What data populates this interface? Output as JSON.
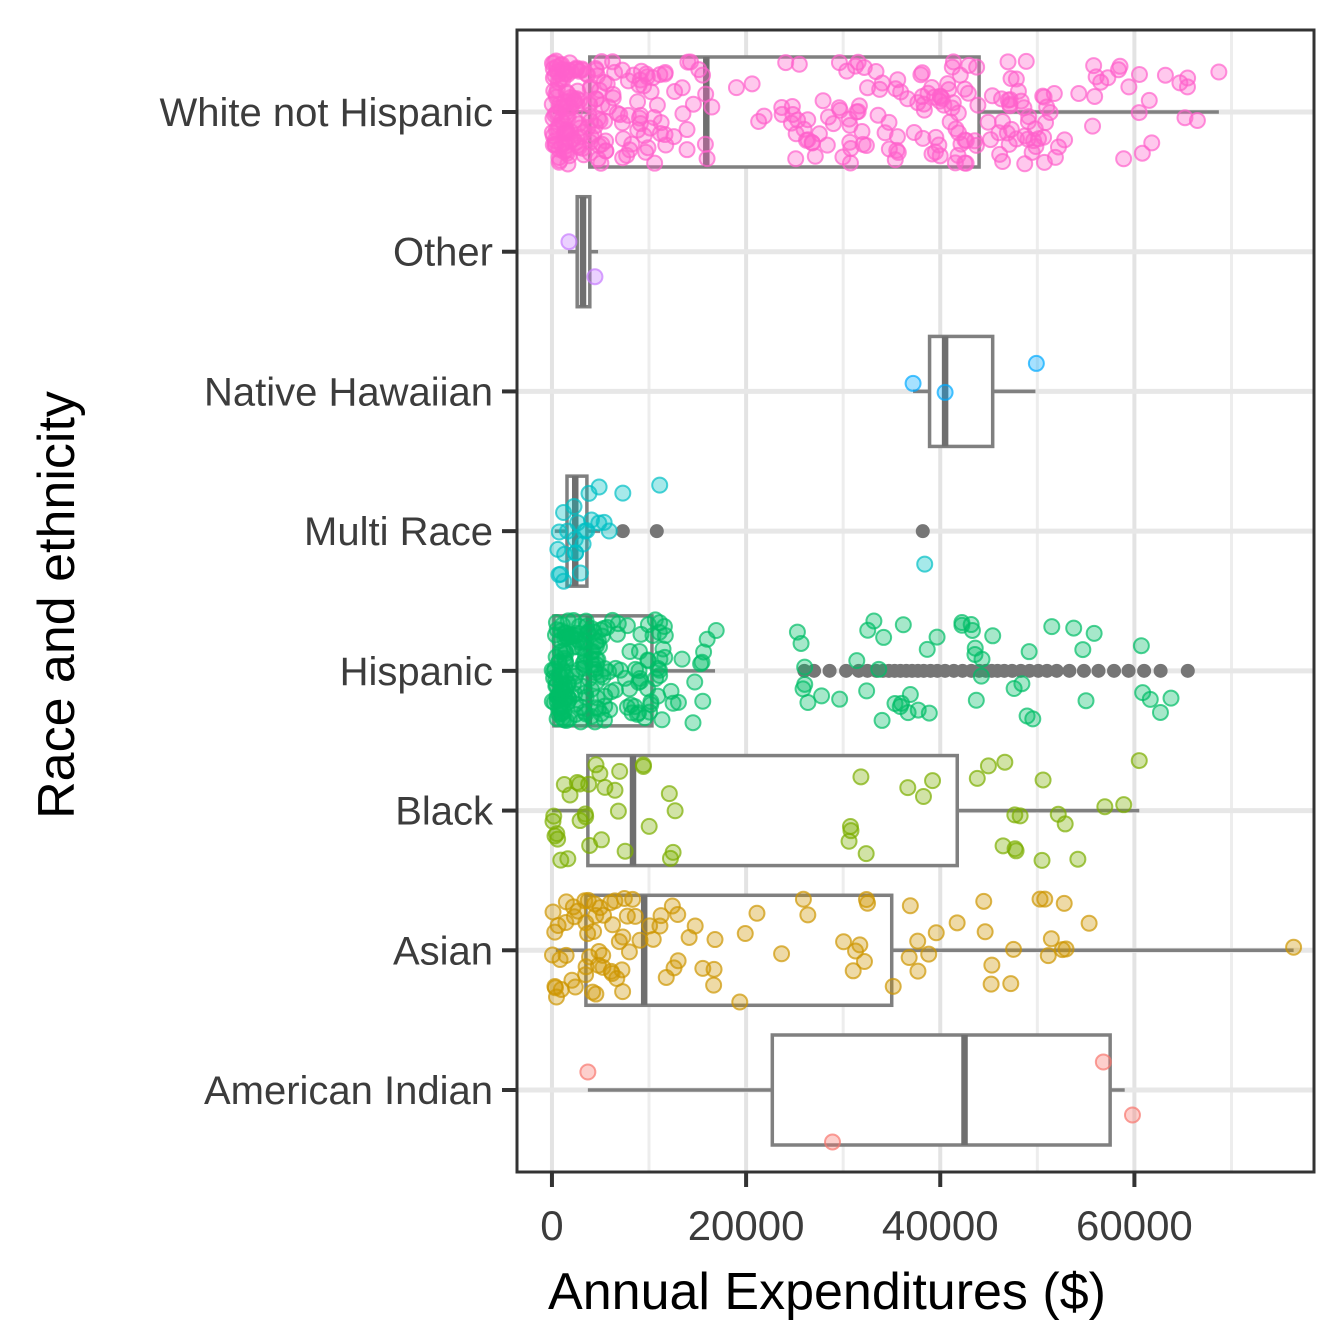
{
  "chart_data": {
    "type": "boxplot-jitter",
    "orientation": "horizontal",
    "title": "",
    "xlabel": "Annual Expenditures ($)",
    "ylabel": "Race and ethnicity",
    "x_ticks": [
      0,
      20000,
      40000,
      60000
    ],
    "x_minor_ticks": [
      10000,
      30000,
      50000,
      70000
    ],
    "xlim": [
      -3600,
      78500
    ],
    "grid": "major+minor",
    "legend": "none",
    "categories_top_to_bottom": [
      "White not Hispanic",
      "Other",
      "Native Hawaiian",
      "Multi Race",
      "Hispanic",
      "Black",
      "Asian",
      "American Indian"
    ],
    "series": [
      {
        "label": "White not Hispanic",
        "color": "#FF61CC",
        "n_points_approx": 375,
        "box": {
          "whisker_low": 100,
          "q1": 3900,
          "median": 15900,
          "q3": 44000,
          "whisker_high": 68700
        },
        "outliers_gray": [],
        "points_explicit": [
          {
            "v": 68700,
            "dy": -40
          }
        ],
        "point_clusters": [
          {
            "from": 0,
            "to": 1800,
            "n": 70
          },
          {
            "from": 1800,
            "to": 5500,
            "n": 60
          },
          {
            "from": 5500,
            "to": 12000,
            "n": 48
          },
          {
            "from": 12000,
            "to": 16000,
            "n": 14
          },
          {
            "from": 16000,
            "to": 24500,
            "n": 8
          },
          {
            "from": 24500,
            "to": 34000,
            "n": 42
          },
          {
            "from": 34000,
            "to": 44000,
            "n": 58
          },
          {
            "from": 44000,
            "to": 52000,
            "n": 42
          },
          {
            "from": 52000,
            "to": 62000,
            "n": 18
          },
          {
            "from": 62000,
            "to": 67500,
            "n": 6
          }
        ]
      },
      {
        "label": "Other",
        "color": "#C77CFF",
        "n_points_approx": 2,
        "box": {
          "whisker_low": 1650,
          "q1": 2600,
          "median": 3200,
          "q3": 3900,
          "whisker_high": 4750
        },
        "outliers_gray": [],
        "points_explicit": [
          {
            "v": 1750,
            "dy": -10
          },
          {
            "v": 4430,
            "dy": 25
          }
        ],
        "point_clusters": []
      },
      {
        "label": "Native Hawaiian",
        "color": "#00A9FF",
        "n_points_approx": 3,
        "box": {
          "whisker_low": 37200,
          "q1": 38900,
          "median": 40500,
          "q3": 45400,
          "whisker_high": 49800
        },
        "outliers_gray": [],
        "points_explicit": [
          {
            "v": 37200,
            "dy": -8
          },
          {
            "v": 40500,
            "dy": 1
          },
          {
            "v": 49900,
            "dy": -28
          }
        ],
        "point_clusters": []
      },
      {
        "label": "Multi Race",
        "color": "#00BFC4",
        "n_points_approx": 26,
        "box": {
          "whisker_low": 300,
          "q1": 1550,
          "median": 2400,
          "q3": 3600,
          "whisker_high": 4950
        },
        "outliers_gray": [
          7300,
          10800,
          38200
        ],
        "points_explicit": [
          {
            "v": 7300,
            "dy": -38
          },
          {
            "v": 11100,
            "dy": -46
          },
          {
            "v": 38400,
            "dy": 33
          }
        ],
        "point_clusters": [
          {
            "from": 0,
            "to": 1500,
            "n": 7
          },
          {
            "from": 1500,
            "to": 4000,
            "n": 11
          },
          {
            "from": 4000,
            "to": 6200,
            "n": 5
          }
        ]
      },
      {
        "label": "Hispanic",
        "color": "#00BE67",
        "n_points_approx": 245,
        "box": {
          "whisker_low": 0,
          "q1": 200,
          "median": 3800,
          "q3": 10300,
          "whisker_high": 16800
        },
        "outliers_gray": [
          26000,
          27000,
          28600,
          30300,
          31600,
          32500,
          33400,
          34100,
          34700,
          35300,
          35900,
          36500,
          37100,
          37700,
          38300,
          39000,
          39700,
          40500,
          41400,
          42300,
          43200,
          44000,
          44700,
          45300,
          45900,
          46600,
          47400,
          48300,
          49200,
          50100,
          51000,
          52000,
          53300,
          54800,
          56300,
          57900,
          59400,
          61000,
          62700,
          65500
        ],
        "points_explicit": [],
        "point_clusters": [
          {
            "from": 0,
            "to": 1800,
            "n": 70
          },
          {
            "from": 1800,
            "to": 5500,
            "n": 70
          },
          {
            "from": 5500,
            "to": 12000,
            "n": 50
          },
          {
            "from": 12000,
            "to": 17000,
            "n": 12
          },
          {
            "from": 25000,
            "to": 32000,
            "n": 9
          },
          {
            "from": 32000,
            "to": 42000,
            "n": 16
          },
          {
            "from": 42000,
            "to": 52000,
            "n": 16
          },
          {
            "from": 52000,
            "to": 62000,
            "n": 7
          },
          {
            "from": 62000,
            "to": 64000,
            "n": 2
          }
        ]
      },
      {
        "label": "Black",
        "color": "#7CAE00",
        "n_points_approx": 55,
        "box": {
          "whisker_low": 0,
          "q1": 3700,
          "median": 8350,
          "q3": 41750,
          "whisker_high": 60500
        },
        "outliers_gray": [],
        "points_explicit": [
          {
            "v": 60500,
            "dy": -50
          }
        ],
        "point_clusters": [
          {
            "from": 0,
            "to": 2500,
            "n": 9
          },
          {
            "from": 2500,
            "to": 7000,
            "n": 14
          },
          {
            "from": 7000,
            "to": 15000,
            "n": 8
          },
          {
            "from": 27000,
            "to": 36000,
            "n": 5
          },
          {
            "from": 36000,
            "to": 45000,
            "n": 5
          },
          {
            "from": 45000,
            "to": 52000,
            "n": 8
          },
          {
            "from": 52000,
            "to": 59500,
            "n": 5
          }
        ]
      },
      {
        "label": "Asian",
        "color": "#CD9600",
        "n_points_approx": 102,
        "box": {
          "whisker_low": 400,
          "q1": 3500,
          "median": 9500,
          "q3": 35000,
          "whisker_high": 76400
        },
        "outliers_gray": [],
        "points_explicit": [
          {
            "v": 76400,
            "dy": -3
          }
        ],
        "point_clusters": [
          {
            "from": 0,
            "to": 2500,
            "n": 16
          },
          {
            "from": 2500,
            "to": 7000,
            "n": 26
          },
          {
            "from": 7000,
            "to": 13000,
            "n": 18
          },
          {
            "from": 13000,
            "to": 20000,
            "n": 8
          },
          {
            "from": 20000,
            "to": 26000,
            "n": 3
          },
          {
            "from": 26000,
            "to": 36000,
            "n": 9
          },
          {
            "from": 36000,
            "to": 46000,
            "n": 11
          },
          {
            "from": 46000,
            "to": 57000,
            "n": 10
          }
        ]
      },
      {
        "label": "American Indian",
        "color": "#F8766D",
        "n_points_approx": 4,
        "box": {
          "whisker_low": 3700,
          "q1": 22700,
          "median": 42500,
          "q3": 57500,
          "whisker_high": 59000
        },
        "outliers_gray": [],
        "points_explicit": [
          {
            "v": 3700,
            "dy": -18
          },
          {
            "v": 28900,
            "dy": 52
          },
          {
            "v": 56800,
            "dy": -28
          },
          {
            "v": 59800,
            "dy": 25
          }
        ],
        "point_clusters": []
      }
    ]
  },
  "style": {
    "background": "#FFFFFF",
    "panel_border": "#333333",
    "grid_major": "#E3E3E3",
    "grid_minor": "#EDEDED",
    "grid_row": "#E7E7E7",
    "box_stroke": "#808080",
    "median_stroke": "#6F6F6F",
    "outlier_gray": "#767676",
    "tick_color": "#333333",
    "tick_label_color": "#3C3C3C"
  },
  "titles": {
    "x": "Annual Expenditures ($)",
    "y": "Race and ethnicity"
  }
}
